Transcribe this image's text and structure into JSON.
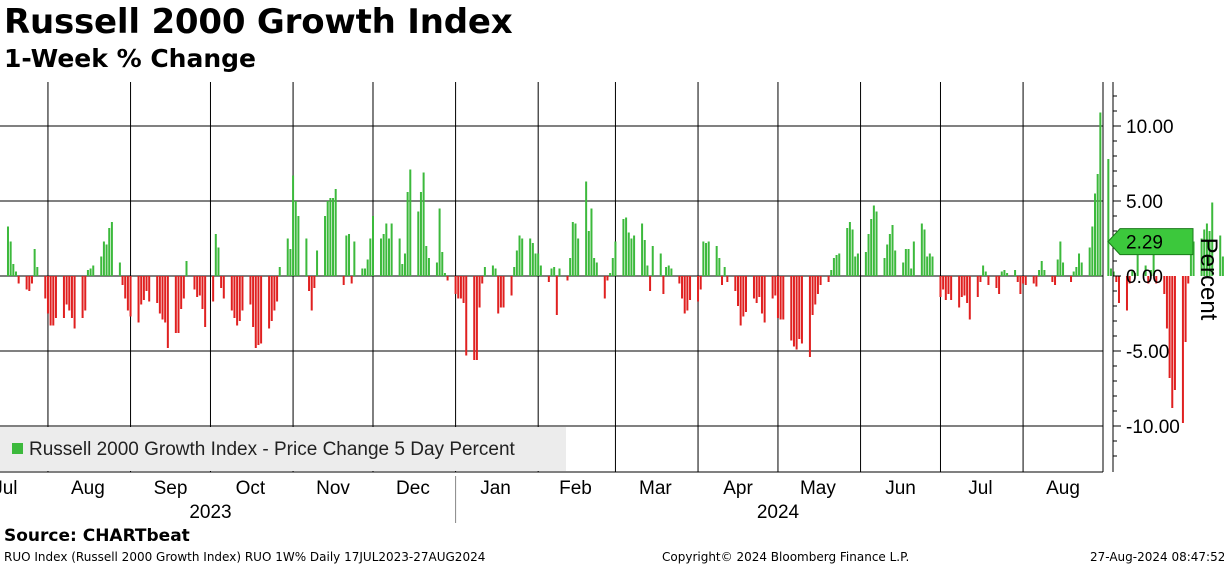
{
  "header": {
    "title": "Russell 2000 Growth Index",
    "subtitle": "1-Week % Change"
  },
  "footer": {
    "source": "Source: CHARTbeat",
    "description": "RUO Index (Russell 2000 Growth Index) RUO 1W% Daily 17JUL2023-27AUG2024",
    "copyright": "Copyright© 2024 Bloomberg Finance L.P.",
    "timestamp": "27-Aug-2024 08:47:52"
  },
  "colors": {
    "positive": "#3cb93c",
    "negative": "#e02020",
    "grid": "#000000"
  },
  "chart_data": {
    "type": "bar",
    "title": "Russell 2000 Growth Index",
    "subtitle": "1-Week % Change",
    "ylabel": "Percent",
    "ylim": [
      -13,
      13
    ],
    "yticks": [
      10,
      5,
      0,
      -5,
      -10
    ],
    "ytick_labels": [
      "10.00",
      "5.00",
      "0.00",
      "-5.00",
      "-10.00"
    ],
    "xlim": [
      "2023-07-14",
      "2024-08-31"
    ],
    "month_ticks": [
      {
        "label": "Jul",
        "date": "2023-07-16"
      },
      {
        "label": "Aug",
        "date": "2023-08-16"
      },
      {
        "label": "Sep",
        "date": "2023-09-16"
      },
      {
        "label": "Oct",
        "date": "2023-10-16"
      },
      {
        "label": "Nov",
        "date": "2023-11-16"
      },
      {
        "label": "Dec",
        "date": "2023-12-16"
      },
      {
        "label": "Jan",
        "date": "2024-01-16"
      },
      {
        "label": "Feb",
        "date": "2024-02-15"
      },
      {
        "label": "Mar",
        "date": "2024-03-16"
      },
      {
        "label": "Apr",
        "date": "2024-04-16"
      },
      {
        "label": "May",
        "date": "2024-05-16"
      },
      {
        "label": "Jun",
        "date": "2024-06-16"
      },
      {
        "label": "Jul",
        "date": "2024-07-16"
      },
      {
        "label": "Aug",
        "date": "2024-08-16"
      }
    ],
    "month_gridlines": [
      "2023-07-01",
      "2023-08-01",
      "2023-09-01",
      "2023-10-01",
      "2023-11-01",
      "2023-12-01",
      "2024-01-01",
      "2024-02-01",
      "2024-03-01",
      "2024-04-01",
      "2024-05-01",
      "2024-06-01",
      "2024-07-01",
      "2024-08-01"
    ],
    "year_labels": [
      {
        "label": "2023",
        "date": "2023-10-01"
      },
      {
        "label": "2024",
        "date": "2024-05-01"
      }
    ],
    "year_separator": "2024-01-01",
    "grid": true,
    "legend": {
      "position": "bottom-left",
      "label": "Russell 2000 Growth Index - Price Change 5 Day Percent"
    },
    "last_value": {
      "value": 2.29,
      "label": "2.29"
    },
    "series": [
      {
        "name": "Russell 2000 Growth Index - Price Change 5 Day Percent",
        "start_date": "2023-07-17",
        "frequency": "business daily",
        "values": [
          3.3,
          2.3,
          0.8,
          0.3,
          -0.5,
          -0.9,
          -1.0,
          -0.5,
          1.8,
          0.6,
          -1.5,
          -2.5,
          -3.3,
          -3.3,
          -2.8,
          -2.8,
          -1.9,
          -2.3,
          -2.8,
          -3.5,
          -2.8,
          -2.3,
          0.4,
          0.5,
          0.7,
          1.3,
          2.3,
          2.1,
          3.2,
          3.6,
          0.9,
          -0.6,
          -1.5,
          -2.3,
          -2.7,
          -3.1,
          -1.9,
          -1.6,
          -1.0,
          -1.7,
          -1.8,
          -2.5,
          -2.9,
          -3.1,
          -4.8,
          -3.8,
          -3.8,
          -2.2,
          -1.5,
          1.0,
          -0.9,
          -1.4,
          -1.3,
          -2.2,
          -3.4,
          -1.7,
          2.8,
          1.9,
          -0.8,
          -1.5,
          -2.3,
          -2.8,
          -3.3,
          -3.0,
          -2.3,
          -1.9,
          -3.4,
          -4.8,
          -4.6,
          -4.5,
          -3.5,
          -3.0,
          -2.3,
          -1.7,
          0.6,
          2.5,
          1.8,
          6.7,
          5.0,
          4.0,
          2.5,
          -1.0,
          -2.3,
          -0.8,
          1.7,
          4.0,
          5.0,
          5.2,
          5.2,
          5.8,
          -0.6,
          2.7,
          2.8,
          -0.5,
          2.3,
          0.5,
          0.5,
          1.1,
          2.5,
          4.0,
          2.5,
          2.8,
          3.5,
          2.5,
          3.5,
          2.5,
          0.8,
          1.5,
          5.6,
          7.1,
          4.3,
          5.6,
          6.9,
          2.0,
          1.2,
          0.9,
          4.5,
          1.6,
          0.2,
          -0.3,
          -1.2,
          -1.5,
          -1.5,
          -1.8,
          -5.3,
          -5.6,
          -5.6,
          -2.1,
          -0.5,
          0.6,
          0.7,
          0.5,
          -2.5,
          -2.1,
          -2.1,
          -1.3,
          0.6,
          1.7,
          2.7,
          2.5,
          2.5,
          2.2,
          1.5,
          1.5,
          0.7,
          -0.4,
          0.5,
          0.6,
          -2.6,
          0.5,
          -0.3,
          1.2,
          3.6,
          3.5,
          2.5,
          6.3,
          3.0,
          4.5,
          1.2,
          0.9,
          -1.5,
          -0.3,
          0.2,
          1.2,
          2.3,
          3.8,
          3.9,
          2.9,
          2.5,
          2.7,
          3.5,
          2.4,
          0.7,
          -1.0,
          2.0,
          1.5,
          -1.2,
          0.6,
          0.7,
          0.5,
          -0.5,
          -1.5,
          -2.5,
          -2.3,
          -1.6,
          -1.7,
          -0.9,
          2.3,
          2.2,
          2.3,
          2.0,
          1.2,
          -0.6,
          0.6,
          -0.4,
          -1.0,
          -2.0,
          -3.3,
          -2.7,
          -2.4,
          -1.5,
          -1.8,
          -1.4,
          -2.5,
          -3.1,
          -1.5,
          -1.3,
          -2.8,
          -2.9,
          -2.9,
          -4.3,
          -4.7,
          -4.9,
          -4.2,
          -4.5,
          -5.4,
          -2.6,
          -1.9,
          -1.2,
          -0.6,
          -0.4,
          0.4,
          1.2,
          1.4,
          1.5,
          3.2,
          3.6,
          3.1,
          1.3,
          1.5,
          1.6,
          2.8,
          3.8,
          4.7,
          4.3,
          1.2,
          2.1,
          2.8,
          3.4,
          1.7,
          0.9,
          1.8,
          1.8,
          0.5,
          2.3,
          3.5,
          3.1,
          1.3,
          1.5,
          1.3,
          -1.4,
          -0.9,
          -1.6,
          -1.2,
          -1.6,
          -2.1,
          -1.4,
          -1.3,
          -1.8,
          -2.9,
          -1.4,
          -0.4,
          0.7,
          0.3,
          -0.6,
          -0.8,
          -1.2,
          0.3,
          0.4,
          0.2,
          0.4,
          -0.4,
          -1.2,
          -0.5,
          -0.6,
          -0.5,
          -0.7,
          0.4,
          1.0,
          0.4,
          -0.4,
          -0.6,
          1.1,
          2.3,
          0.9,
          -0.4,
          0.3,
          0.6,
          1.5,
          0.9,
          1.9,
          3.3,
          5.5,
          6.8,
          10.9,
          7.8,
          0.5,
          0.3,
          -0.4,
          -1.8,
          -2.3,
          -0.5,
          0.4,
          0.2,
          2.6,
          0.7,
          -0.5,
          0.4,
          2.4,
          -0.5,
          -1.2,
          -3.5,
          -6.8,
          -8.8,
          -7.6,
          -9.8,
          -4.4,
          -0.5,
          1.9,
          2.3,
          2.5,
          3.1,
          3.5,
          3.0,
          4.9,
          2.7,
          1.3,
          4.5,
          2.4,
          2.2,
          3.6,
          1.9,
          2.5,
          2.3,
          2.29
        ]
      }
    ]
  }
}
